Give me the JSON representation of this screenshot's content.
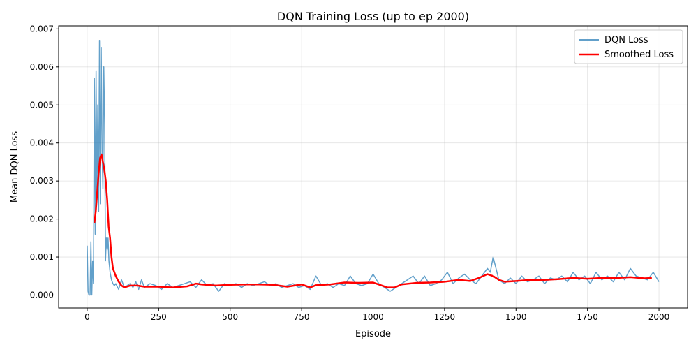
{
  "chart_data": {
    "type": "line",
    "title": "DQN Training Loss (up to ep 2000)",
    "xlabel": "Episode",
    "ylabel": "Mean DQN Loss",
    "xlim": [
      -100,
      2100
    ],
    "ylim": [
      -0.00034,
      0.00708
    ],
    "xticks": [
      0,
      250,
      500,
      750,
      1000,
      1250,
      1500,
      1750,
      2000
    ],
    "xtick_labels": [
      "0",
      "250",
      "500",
      "750",
      "1000",
      "1250",
      "1500",
      "1750",
      "2000"
    ],
    "yticks": [
      0,
      0.001,
      0.002,
      0.003,
      0.004,
      0.005,
      0.006,
      0.007
    ],
    "ytick_labels": [
      "0.000",
      "0.001",
      "0.002",
      "0.003",
      "0.004",
      "0.005",
      "0.006",
      "0.007"
    ],
    "grid": true,
    "legend_position": "top-right",
    "series": [
      {
        "name": "DQN Loss",
        "color": "#1f77b4",
        "opacity": 0.7,
        "x": [
          0,
          3,
          6,
          10,
          13,
          16,
          19,
          22,
          25,
          28,
          31,
          34,
          37,
          40,
          43,
          46,
          49,
          52,
          55,
          58,
          61,
          64,
          67,
          70,
          73,
          76,
          80,
          85,
          90,
          95,
          100,
          110,
          120,
          130,
          140,
          150,
          160,
          170,
          180,
          190,
          200,
          220,
          240,
          260,
          280,
          300,
          320,
          340,
          360,
          380,
          400,
          420,
          440,
          460,
          480,
          500,
          520,
          540,
          560,
          580,
          600,
          620,
          640,
          660,
          680,
          700,
          720,
          740,
          760,
          780,
          800,
          820,
          840,
          860,
          880,
          900,
          920,
          940,
          960,
          980,
          1000,
          1020,
          1040,
          1060,
          1080,
          1100,
          1120,
          1140,
          1160,
          1180,
          1200,
          1220,
          1240,
          1260,
          1280,
          1300,
          1320,
          1340,
          1360,
          1380,
          1400,
          1410,
          1420,
          1440,
          1460,
          1480,
          1500,
          1520,
          1540,
          1560,
          1580,
          1600,
          1620,
          1640,
          1660,
          1680,
          1700,
          1720,
          1740,
          1760,
          1780,
          1800,
          1820,
          1840,
          1860,
          1880,
          1900,
          1920,
          1940,
          1960,
          1980,
          2000
        ],
        "y": [
          0.0013,
          0.0001,
          0.0,
          0.0,
          0.0014,
          0.0,
          0.0009,
          0.0003,
          0.0057,
          0.0016,
          0.0059,
          0.0025,
          0.005,
          0.0022,
          0.0067,
          0.0024,
          0.0065,
          0.0038,
          0.0028,
          0.006,
          0.0045,
          0.0009,
          0.0015,
          0.0012,
          0.0015,
          0.0009,
          0.0006,
          0.0004,
          0.0003,
          0.00025,
          0.0003,
          0.00015,
          0.0004,
          0.0002,
          0.00025,
          0.0003,
          0.0002,
          0.00035,
          0.00015,
          0.0004,
          0.0002,
          0.0003,
          0.00025,
          0.00015,
          0.0003,
          0.0002,
          0.00025,
          0.0003,
          0.00035,
          0.0002,
          0.0004,
          0.00025,
          0.0003,
          0.0001,
          0.0003,
          0.00025,
          0.0003,
          0.0002,
          0.0003,
          0.00025,
          0.0003,
          0.00035,
          0.00025,
          0.0003,
          0.0002,
          0.00025,
          0.0003,
          0.0002,
          0.00025,
          0.00015,
          0.0005,
          0.00025,
          0.0003,
          0.0002,
          0.0003,
          0.00025,
          0.0005,
          0.0003,
          0.00025,
          0.0003,
          0.00055,
          0.0003,
          0.0002,
          0.0001,
          0.0002,
          0.0003,
          0.0004,
          0.0005,
          0.0003,
          0.0005,
          0.00025,
          0.0003,
          0.0004,
          0.0006,
          0.0003,
          0.00045,
          0.00055,
          0.0004,
          0.0003,
          0.0005,
          0.0007,
          0.0006,
          0.001,
          0.0004,
          0.0003,
          0.00045,
          0.0003,
          0.0005,
          0.00035,
          0.0004,
          0.0005,
          0.0003,
          0.00045,
          0.0004,
          0.0005,
          0.00035,
          0.0006,
          0.0004,
          0.0005,
          0.0003,
          0.0006,
          0.0004,
          0.0005,
          0.00035,
          0.0006,
          0.0004,
          0.0007,
          0.0005,
          0.00045,
          0.0004,
          0.0006,
          0.00035
        ]
      },
      {
        "name": "Smoothed Loss",
        "color": "#ff0000",
        "x": [
          25,
          30,
          35,
          40,
          45,
          50,
          55,
          60,
          65,
          70,
          75,
          80,
          85,
          90,
          100,
          110,
          120,
          130,
          150,
          175,
          200,
          250,
          300,
          350,
          380,
          400,
          450,
          500,
          550,
          600,
          650,
          700,
          750,
          780,
          800,
          850,
          900,
          950,
          1000,
          1050,
          1075,
          1100,
          1150,
          1200,
          1250,
          1300,
          1340,
          1370,
          1400,
          1420,
          1440,
          1460,
          1500,
          1550,
          1600,
          1650,
          1700,
          1750,
          1800,
          1850,
          1900,
          1950,
          1975
        ],
        "y": [
          0.0019,
          0.0022,
          0.0027,
          0.0032,
          0.0036,
          0.0037,
          0.0035,
          0.0033,
          0.003,
          0.0025,
          0.0018,
          0.0015,
          0.001,
          0.0007,
          0.0005,
          0.00035,
          0.00025,
          0.0002,
          0.00025,
          0.00025,
          0.00022,
          0.00022,
          0.0002,
          0.00023,
          0.0003,
          0.00028,
          0.00025,
          0.00027,
          0.00028,
          0.00028,
          0.00027,
          0.00022,
          0.00028,
          0.0002,
          0.00026,
          0.00028,
          0.00033,
          0.00032,
          0.00033,
          0.0002,
          0.0002,
          0.00028,
          0.00032,
          0.00033,
          0.00035,
          0.0004,
          0.00037,
          0.00045,
          0.00055,
          0.0005,
          0.0004,
          0.00035,
          0.00037,
          0.0004,
          0.0004,
          0.00042,
          0.00045,
          0.00043,
          0.00045,
          0.00045,
          0.00047,
          0.00044,
          0.00045
        ]
      }
    ]
  }
}
